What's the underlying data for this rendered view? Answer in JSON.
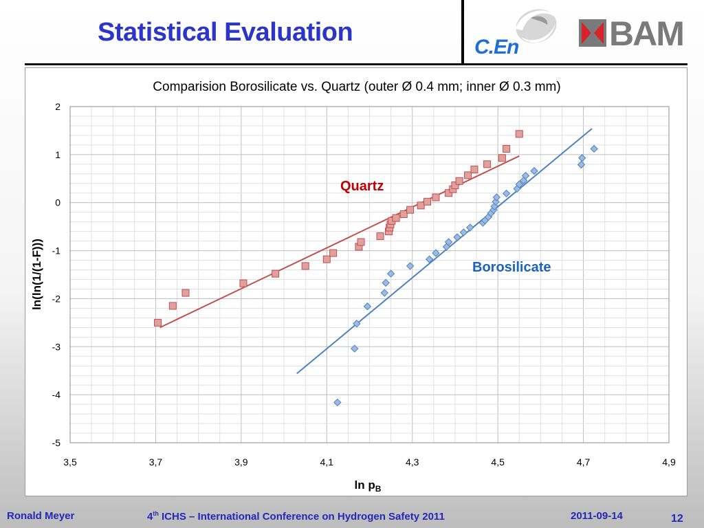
{
  "header": {
    "title": "Statistical Evaluation",
    "cen_logo_text": "C.En",
    "bam_logo_text": "BAM",
    "colors": {
      "title": "#2b35c8",
      "cen": "#1e6fd2",
      "bam": "#7a7a7a",
      "bam_x": "#d8232a"
    }
  },
  "footer": {
    "author": "Ronald Meyer",
    "conference_num": "4",
    "conference_sup": "th",
    "conference_rest": " ICHS – International Conference on Hydrogen Safety 2011",
    "date": "2011-09-14",
    "page": "12"
  },
  "chart_data": {
    "type": "scatter",
    "title": "Comparision Borosilicate vs. Quartz (outer Ø 0.4 mm; inner Ø 0.3 mm)",
    "xlabel_main": "ln p",
    "xlabel_sub": "B",
    "ylabel": "ln(ln(1/(1-F)))",
    "xlim": [
      3.5,
      4.9
    ],
    "ylim": [
      -5,
      2
    ],
    "x_ticks": [
      "3,5",
      "3,7",
      "3,9",
      "4,1",
      "4,3",
      "4,5",
      "4,7",
      "4,9"
    ],
    "y_ticks": [
      "2",
      "1",
      "0",
      "-1",
      "-2",
      "-3",
      "-4",
      "-5"
    ],
    "grid": true,
    "series": [
      {
        "name": "Quartz",
        "color": "#c0504d",
        "marker": "square",
        "points": [
          [
            3.705,
            -2.5
          ],
          [
            3.74,
            -2.15
          ],
          [
            3.77,
            -1.88
          ],
          [
            3.905,
            -1.68
          ],
          [
            3.98,
            -1.48
          ],
          [
            4.05,
            -1.32
          ],
          [
            4.1,
            -1.18
          ],
          [
            4.115,
            -1.05
          ],
          [
            4.175,
            -0.92
          ],
          [
            4.18,
            -0.82
          ],
          [
            4.225,
            -0.7
          ],
          [
            4.245,
            -0.6
          ],
          [
            4.247,
            -0.52
          ],
          [
            4.249,
            -0.45
          ],
          [
            4.252,
            -0.38
          ],
          [
            4.262,
            -0.32
          ],
          [
            4.28,
            -0.24
          ],
          [
            4.295,
            -0.15
          ],
          [
            4.32,
            -0.06
          ],
          [
            4.335,
            0.02
          ],
          [
            4.355,
            0.11
          ],
          [
            4.385,
            0.2
          ],
          [
            4.395,
            0.28
          ],
          [
            4.4,
            0.36
          ],
          [
            4.41,
            0.45
          ],
          [
            4.43,
            0.57
          ],
          [
            4.445,
            0.69
          ],
          [
            4.475,
            0.8
          ],
          [
            4.51,
            0.93
          ],
          [
            4.52,
            1.12
          ],
          [
            4.55,
            1.43
          ]
        ],
        "fit": [
          [
            3.71,
            -2.6
          ],
          [
            4.55,
            0.97
          ]
        ]
      },
      {
        "name": "Borosilicate",
        "color": "#4f81bd",
        "marker": "diamond",
        "points": [
          [
            4.125,
            -4.16
          ],
          [
            4.165,
            -3.04
          ],
          [
            4.17,
            -2.52
          ],
          [
            4.195,
            -2.16
          ],
          [
            4.235,
            -1.88
          ],
          [
            4.238,
            -1.67
          ],
          [
            4.25,
            -1.48
          ],
          [
            4.295,
            -1.32
          ],
          [
            4.34,
            -1.18
          ],
          [
            4.355,
            -1.05
          ],
          [
            4.38,
            -0.92
          ],
          [
            4.385,
            -0.82
          ],
          [
            4.405,
            -0.72
          ],
          [
            4.42,
            -0.62
          ],
          [
            4.435,
            -0.52
          ],
          [
            4.465,
            -0.42
          ],
          [
            4.47,
            -0.37
          ],
          [
            4.478,
            -0.3
          ],
          [
            4.484,
            -0.22
          ],
          [
            4.49,
            -0.15
          ],
          [
            4.492,
            -0.08
          ],
          [
            4.495,
            0.02
          ],
          [
            4.497,
            0.11
          ],
          [
            4.52,
            0.19
          ],
          [
            4.545,
            0.29
          ],
          [
            4.55,
            0.38
          ],
          [
            4.56,
            0.46
          ],
          [
            4.565,
            0.56
          ],
          [
            4.585,
            0.66
          ],
          [
            4.695,
            0.79
          ],
          [
            4.697,
            0.93
          ],
          [
            4.725,
            1.12
          ]
        ],
        "fit": [
          [
            4.03,
            -3.56
          ],
          [
            4.72,
            1.54
          ]
        ]
      }
    ],
    "annotations": [
      {
        "text": "Quartz",
        "color": "#c00000"
      },
      {
        "text": "Borosilicate",
        "color": "#1f63b8"
      }
    ]
  }
}
